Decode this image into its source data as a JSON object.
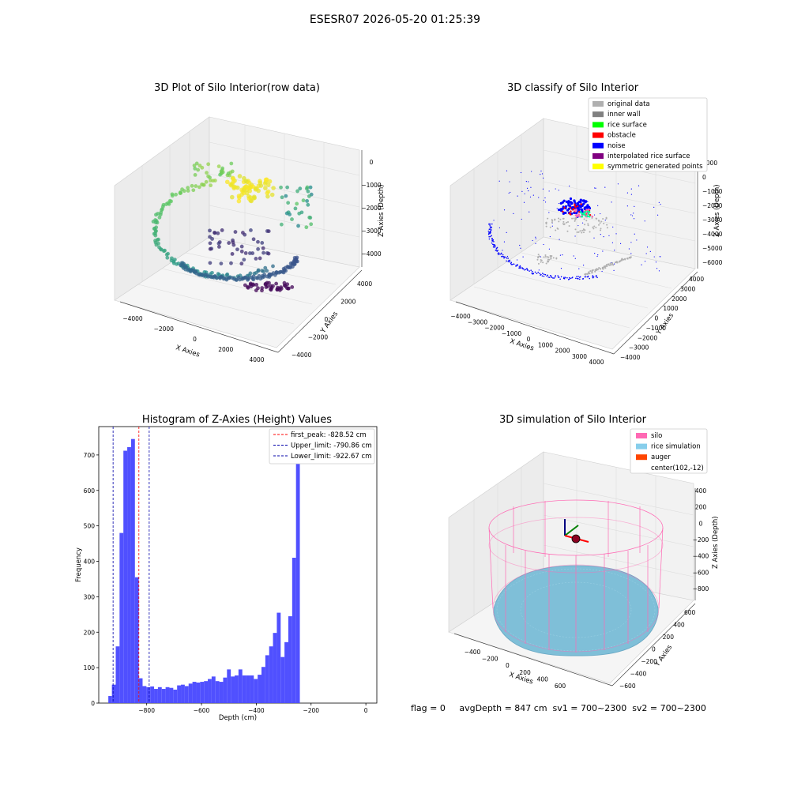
{
  "page": {
    "suptitle": "ESESR07 2026-05-20 01:25:39",
    "footer": "flag = 0     avgDepth = 847 cm  sv1 = 700~2300  sv2 = 700~2300"
  },
  "chart_data": [
    {
      "type": "scatter",
      "variant": "3d",
      "title": "3D Plot of Silo Interior(row data)",
      "xlabel": "X Axies",
      "ylabel": "Y Axies",
      "zlabel": "Z Axies (Depth)",
      "x_ticks": [
        "−4000",
        "−2000",
        "0",
        "2000",
        "4000"
      ],
      "y_ticks": [
        "−4000",
        "−2000",
        "0",
        "2000",
        "4000"
      ],
      "z_ticks": [
        "0",
        "−1000",
        "−2000",
        "−3000",
        "−4000"
      ],
      "colormap": "viridis"
    },
    {
      "type": "scatter",
      "variant": "3d",
      "title": "3D classify of Silo Interior",
      "xlabel": "X Axies",
      "ylabel": "Y Axies",
      "zlabel": "Z Axies (Depth)",
      "x_ticks": [
        "−4000",
        "−3000",
        "−2000",
        "−1000",
        "0",
        "1000",
        "2000",
        "3000",
        "4000"
      ],
      "y_ticks": [
        "−4000",
        "−3000",
        "−2000",
        "−1000",
        "0",
        "1000",
        "2000",
        "3000",
        "4000"
      ],
      "z_ticks": [
        "1000",
        "0",
        "−1000",
        "−2000",
        "−3000",
        "−4000",
        "−5000",
        "−6000"
      ],
      "legend_position": "top-right",
      "legend": [
        {
          "label": "original data",
          "color": "#b0b0b0"
        },
        {
          "label": "inner wall",
          "color": "#808080"
        },
        {
          "label": "rice surface",
          "color": "#00ff00"
        },
        {
          "label": "obstacle",
          "color": "#ff0000"
        },
        {
          "label": "noise",
          "color": "#0000ff"
        },
        {
          "label": "interpolated rice surface",
          "color": "#800080"
        },
        {
          "label": "symmetric generated points",
          "color": "#ffff00"
        }
      ]
    },
    {
      "type": "bar",
      "variant": "histogram",
      "title": "Histogram of Z-Axies (Height) Values",
      "xlabel": "Depth (cm)",
      "ylabel": "Frequency",
      "xlim": [
        -975,
        40
      ],
      "ylim": [
        0,
        780
      ],
      "x_ticks": [
        -800,
        -600,
        -400,
        -200,
        0
      ],
      "x_tick_labels": [
        "−800",
        "−600",
        "−400",
        "−200",
        "0"
      ],
      "y_ticks": [
        0,
        100,
        200,
        300,
        400,
        500,
        600,
        700
      ],
      "bar_color": "#5050ff",
      "bins": [
        [
          -940,
          -927,
          20
        ],
        [
          -927,
          -913,
          52
        ],
        [
          -913,
          -899,
          160
        ],
        [
          -899,
          -885,
          480
        ],
        [
          -885,
          -871,
          712
        ],
        [
          -871,
          -857,
          722
        ],
        [
          -857,
          -843,
          745
        ],
        [
          -843,
          -829,
          355
        ],
        [
          -829,
          -815,
          70
        ],
        [
          -815,
          -801,
          48
        ],
        [
          -801,
          -787,
          45
        ],
        [
          -787,
          -773,
          47
        ],
        [
          -773,
          -759,
          40
        ],
        [
          -759,
          -745,
          45
        ],
        [
          -745,
          -731,
          40
        ],
        [
          -731,
          -717,
          45
        ],
        [
          -717,
          -703,
          43
        ],
        [
          -703,
          -689,
          38
        ],
        [
          -689,
          -675,
          50
        ],
        [
          -675,
          -661,
          52
        ],
        [
          -661,
          -647,
          48
        ],
        [
          -647,
          -633,
          55
        ],
        [
          -633,
          -619,
          60
        ],
        [
          -619,
          -605,
          58
        ],
        [
          -605,
          -591,
          60
        ],
        [
          -591,
          -577,
          62
        ],
        [
          -577,
          -563,
          68
        ],
        [
          -563,
          -549,
          75
        ],
        [
          -549,
          -535,
          62
        ],
        [
          -535,
          -521,
          60
        ],
        [
          -521,
          -507,
          72
        ],
        [
          -507,
          -493,
          95
        ],
        [
          -493,
          -479,
          75
        ],
        [
          -479,
          -465,
          78
        ],
        [
          -465,
          -451,
          95
        ],
        [
          -451,
          -437,
          78
        ],
        [
          -437,
          -423,
          78
        ],
        [
          -423,
          -409,
          78
        ],
        [
          -409,
          -395,
          68
        ],
        [
          -395,
          -381,
          80
        ],
        [
          -381,
          -367,
          102
        ],
        [
          -367,
          -353,
          135
        ],
        [
          -353,
          -339,
          160
        ],
        [
          -339,
          -325,
          198
        ],
        [
          -325,
          -311,
          255
        ],
        [
          -311,
          -297,
          130
        ],
        [
          -297,
          -283,
          172
        ],
        [
          -283,
          -269,
          245
        ],
        [
          -269,
          -255,
          410
        ],
        [
          -255,
          -241,
          675
        ]
      ],
      "lines": [
        {
          "label": "first_peak: -828.52 cm",
          "x": -828.52,
          "color": "#ff0000",
          "style": "dashed"
        },
        {
          "label": "Upper_limit: -790.86 cm",
          "x": -790.86,
          "color": "#0000aa",
          "style": "dashed"
        },
        {
          "label": "Lower_limit: -922.67 cm",
          "x": -922.67,
          "color": "#0000aa",
          "style": "dashed"
        }
      ],
      "legend_position": "top-right"
    },
    {
      "type": "scatter",
      "variant": "3d-surface",
      "title": "3D simulation of Silo Interior",
      "xlabel": "X Axies",
      "ylabel": "Y Axies",
      "zlabel": "Z Axies (Depth)",
      "x_ticks": [
        "−400",
        "−200",
        "0",
        "200",
        "400",
        "600"
      ],
      "y_ticks": [
        "600",
        "400",
        "200",
        "0",
        "−200",
        "−400",
        "−600"
      ],
      "z_ticks": [
        "400",
        "200",
        "0",
        "−200",
        "−400",
        "−600",
        "−800"
      ],
      "legend_position": "top-right",
      "legend": [
        {
          "label": "silo",
          "color": "#ff69b4"
        },
        {
          "label": "rice simulation",
          "color": "#87ceeb"
        },
        {
          "label": "auger",
          "color": "#ff4500"
        },
        {
          "label": "center(102,-12)",
          "color": ""
        }
      ]
    }
  ]
}
